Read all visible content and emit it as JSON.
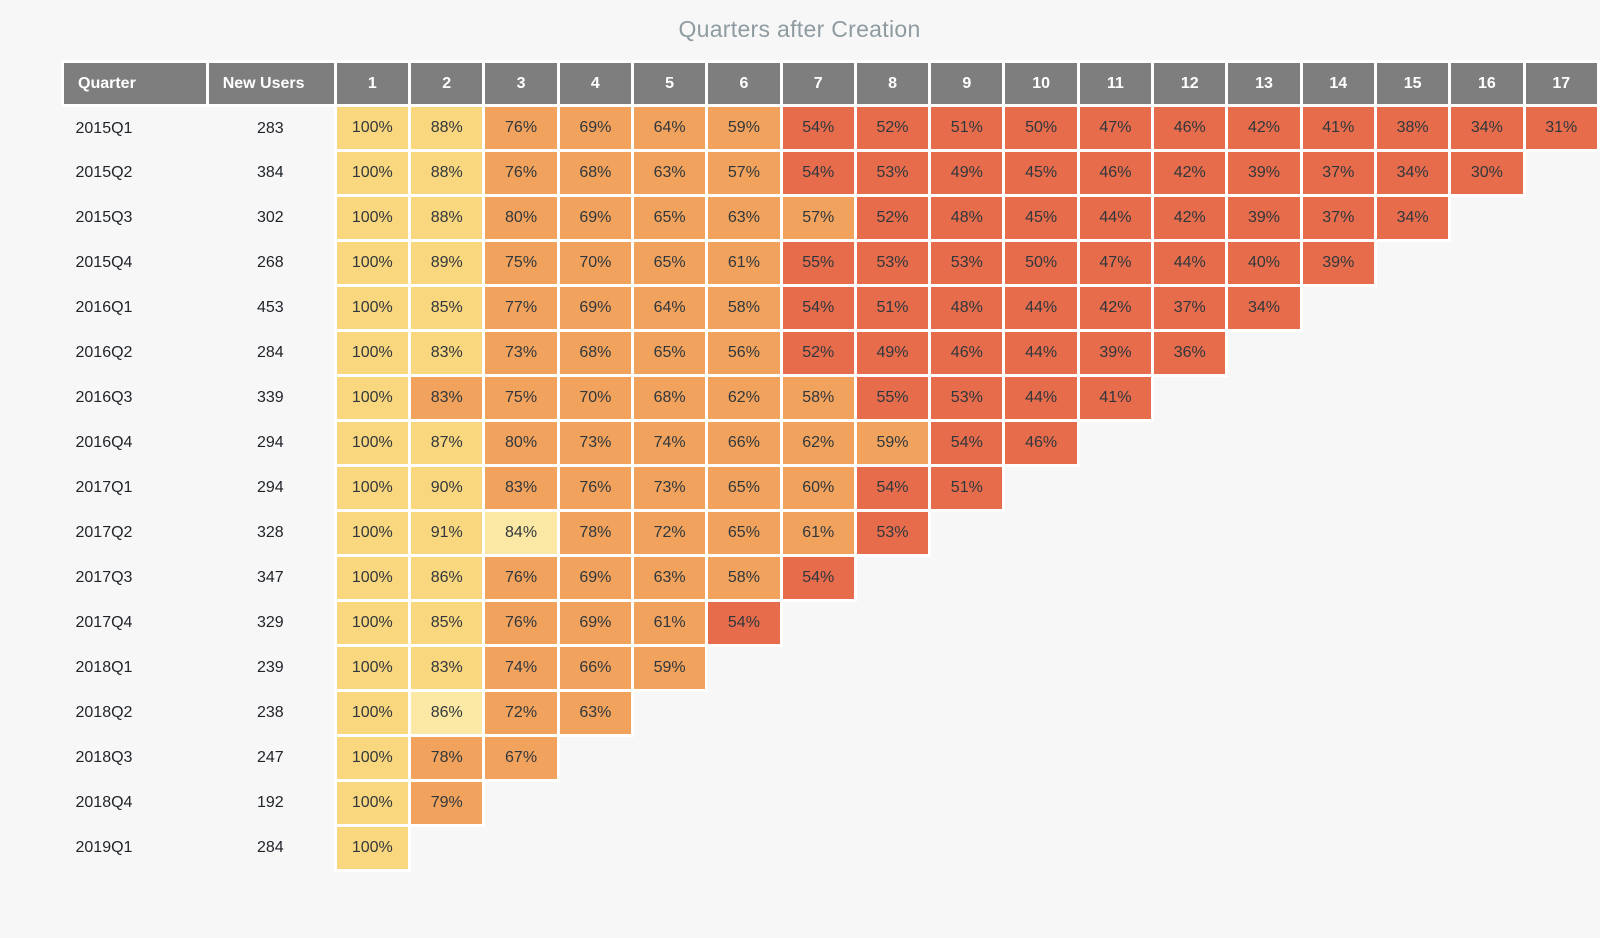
{
  "page": {
    "background": "#F7F7F8"
  },
  "chart_data": {
    "type": "heatmap",
    "title": "Quarters after Creation",
    "title_color": "#8E9BA0",
    "header_bg": "#7E7E7E",
    "header": {
      "quarter": "Quarter",
      "new_users": "New Users",
      "periods": [
        "1",
        "2",
        "3",
        "4",
        "5",
        "6",
        "7",
        "8",
        "9",
        "10",
        "11",
        "12",
        "13",
        "14",
        "15",
        "16",
        "17"
      ]
    },
    "value_suffix": "%",
    "palette": {
      "Y": "#F9D77F",
      "P": "#FBE8A4",
      "O": "#F1A35D",
      "R": "#E66C4C"
    },
    "rows": [
      {
        "quarter": "2015Q1",
        "new_users": "283",
        "values": [
          100,
          88,
          76,
          69,
          64,
          59,
          54,
          52,
          51,
          50,
          47,
          46,
          42,
          41,
          38,
          34,
          31
        ],
        "colors": "YYOOOORRRRRRRRRRR"
      },
      {
        "quarter": "2015Q2",
        "new_users": "384",
        "values": [
          100,
          88,
          76,
          68,
          63,
          57,
          54,
          53,
          49,
          45,
          46,
          42,
          39,
          37,
          34,
          30
        ],
        "colors": "YYOOOORRRRRRRRRR"
      },
      {
        "quarter": "2015Q3",
        "new_users": "302",
        "values": [
          100,
          88,
          80,
          69,
          65,
          63,
          57,
          52,
          48,
          45,
          44,
          42,
          39,
          37,
          34
        ],
        "colors": "YYOOOOORRRRRRRR"
      },
      {
        "quarter": "2015Q4",
        "new_users": "268",
        "values": [
          100,
          89,
          75,
          70,
          65,
          61,
          55,
          53,
          53,
          50,
          47,
          44,
          40,
          39
        ],
        "colors": "YYOOOORRRRRRRR"
      },
      {
        "quarter": "2016Q1",
        "new_users": "453",
        "values": [
          100,
          85,
          77,
          69,
          64,
          58,
          54,
          51,
          48,
          44,
          42,
          37,
          34
        ],
        "colors": "YYOOOORRRRRRR"
      },
      {
        "quarter": "2016Q2",
        "new_users": "284",
        "values": [
          100,
          83,
          73,
          68,
          65,
          56,
          52,
          49,
          46,
          44,
          39,
          36
        ],
        "colors": "YYOOOORRRRRR"
      },
      {
        "quarter": "2016Q3",
        "new_users": "339",
        "values": [
          100,
          83,
          75,
          70,
          68,
          62,
          58,
          55,
          53,
          44,
          41
        ],
        "colors": "YOOOOOORRRR"
      },
      {
        "quarter": "2016Q4",
        "new_users": "294",
        "values": [
          100,
          87,
          80,
          73,
          74,
          66,
          62,
          59,
          54,
          46
        ],
        "colors": "YYOOOOOORR"
      },
      {
        "quarter": "2017Q1",
        "new_users": "294",
        "values": [
          100,
          90,
          83,
          76,
          73,
          65,
          60,
          54,
          51
        ],
        "colors": "YYOOOOORR"
      },
      {
        "quarter": "2017Q2",
        "new_users": "328",
        "values": [
          100,
          91,
          84,
          78,
          72,
          65,
          61,
          53
        ],
        "colors": "YYPOOOOR"
      },
      {
        "quarter": "2017Q3",
        "new_users": "347",
        "values": [
          100,
          86,
          76,
          69,
          63,
          58,
          54
        ],
        "colors": "YYOOOOR"
      },
      {
        "quarter": "2017Q4",
        "new_users": "329",
        "values": [
          100,
          85,
          76,
          69,
          61,
          54
        ],
        "colors": "YYOOOR"
      },
      {
        "quarter": "2018Q1",
        "new_users": "239",
        "values": [
          100,
          83,
          74,
          66,
          59
        ],
        "colors": "YYOOO"
      },
      {
        "quarter": "2018Q2",
        "new_users": "238",
        "values": [
          100,
          86,
          72,
          63
        ],
        "colors": "YPOO"
      },
      {
        "quarter": "2018Q3",
        "new_users": "247",
        "values": [
          100,
          78,
          67
        ],
        "colors": "YOO"
      },
      {
        "quarter": "2018Q4",
        "new_users": "192",
        "values": [
          100,
          79
        ],
        "colors": "YO"
      },
      {
        "quarter": "2019Q1",
        "new_users": "284",
        "values": [
          100
        ],
        "colors": "Y"
      }
    ]
  }
}
